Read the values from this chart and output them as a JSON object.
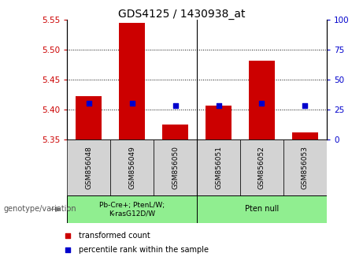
{
  "title": "GDS4125 / 1430938_at",
  "samples": [
    "GSM856048",
    "GSM856049",
    "GSM856050",
    "GSM856051",
    "GSM856052",
    "GSM856053"
  ],
  "transformed_counts": [
    5.422,
    5.545,
    5.375,
    5.406,
    5.482,
    5.362
  ],
  "percentile_ranks": [
    30,
    30,
    28,
    28,
    30,
    28
  ],
  "ylim_left": [
    5.35,
    5.55
  ],
  "ylim_right": [
    0,
    100
  ],
  "yticks_left": [
    5.35,
    5.4,
    5.45,
    5.5,
    5.55
  ],
  "yticks_right": [
    0,
    25,
    50,
    75,
    100
  ],
  "bar_color": "#cc0000",
  "dot_color": "#0000cc",
  "bar_bottom": 5.35,
  "groups": [
    {
      "label": "Pb-Cre+; PtenL/W;\nK-rasG12D/W",
      "n_samples": 3,
      "color": "#90ee90"
    },
    {
      "label": "Pten null",
      "n_samples": 3,
      "color": "#90ee90"
    }
  ],
  "group_annotation_label": "genotype/variation",
  "legend_items": [
    {
      "label": "transformed count",
      "color": "#cc0000"
    },
    {
      "label": "percentile rank within the sample",
      "color": "#0000cc"
    }
  ],
  "tick_color_left": "#cc0000",
  "tick_color_right": "#0000cc",
  "sample_box_color": "#d3d3d3",
  "grid_ticks": [
    5.4,
    5.45,
    5.5
  ]
}
